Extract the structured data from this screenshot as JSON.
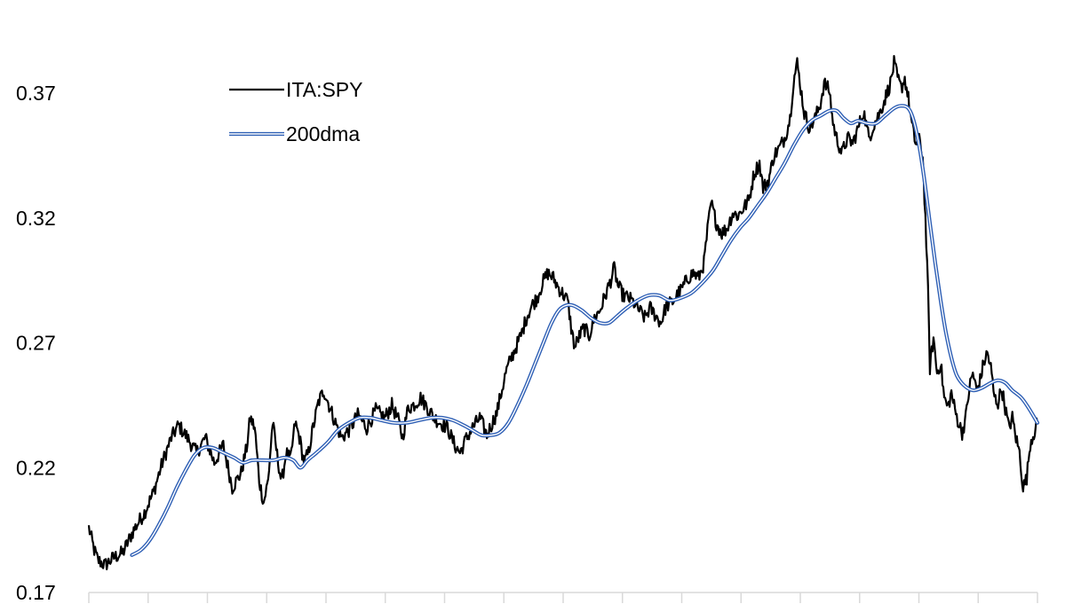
{
  "chart_data": {
    "type": "line",
    "title": "",
    "xlabel": "",
    "ylabel": "",
    "ylim": [
      0.17,
      0.385
    ],
    "y_ticks": [
      0.17,
      0.22,
      0.27,
      0.32,
      0.37
    ],
    "y_tick_labels": [
      "0.17",
      "0.22",
      "0.27",
      "0.32",
      "0.37"
    ],
    "x_axis_tick_count": 17,
    "grid": false,
    "legend_position": "top-left",
    "x_range": [
      0,
      1000
    ],
    "series": [
      {
        "name": "ITA:SPY",
        "color": "#000000",
        "style": "solid",
        "anchors": [
          [
            0,
            0.196
          ],
          [
            6,
            0.187
          ],
          [
            10,
            0.183
          ],
          [
            18,
            0.181
          ],
          [
            28,
            0.184
          ],
          [
            38,
            0.186
          ],
          [
            50,
            0.195
          ],
          [
            62,
            0.202
          ],
          [
            72,
            0.21
          ],
          [
            82,
            0.222
          ],
          [
            92,
            0.232
          ],
          [
            100,
            0.237
          ],
          [
            110,
            0.232
          ],
          [
            120,
            0.226
          ],
          [
            130,
            0.232
          ],
          [
            140,
            0.222
          ],
          [
            150,
            0.229
          ],
          [
            160,
            0.212
          ],
          [
            170,
            0.218
          ],
          [
            176,
            0.228
          ],
          [
            180,
            0.24
          ],
          [
            185,
            0.236
          ],
          [
            190,
            0.215
          ],
          [
            195,
            0.206
          ],
          [
            200,
            0.215
          ],
          [
            205,
            0.238
          ],
          [
            210,
            0.225
          ],
          [
            215,
            0.214
          ],
          [
            220,
            0.226
          ],
          [
            225,
            0.223
          ],
          [
            230,
            0.238
          ],
          [
            235,
            0.232
          ],
          [
            240,
            0.222
          ],
          [
            245,
            0.226
          ],
          [
            250,
            0.236
          ],
          [
            256,
            0.246
          ],
          [
            262,
            0.251
          ],
          [
            268,
            0.245
          ],
          [
            275,
            0.238
          ],
          [
            282,
            0.232
          ],
          [
            290,
            0.235
          ],
          [
            300,
            0.241
          ],
          [
            310,
            0.236
          ],
          [
            320,
            0.243
          ],
          [
            330,
            0.24
          ],
          [
            338,
            0.245
          ],
          [
            345,
            0.239
          ],
          [
            350,
            0.232
          ],
          [
            356,
            0.244
          ],
          [
            362,
            0.245
          ],
          [
            370,
            0.248
          ],
          [
            378,
            0.244
          ],
          [
            385,
            0.24
          ],
          [
            392,
            0.238
          ],
          [
            400,
            0.236
          ],
          [
            408,
            0.229
          ],
          [
            414,
            0.226
          ],
          [
            420,
            0.231
          ],
          [
            428,
            0.236
          ],
          [
            436,
            0.24
          ],
          [
            444,
            0.233
          ],
          [
            450,
            0.238
          ],
          [
            455,
            0.242
          ],
          [
            460,
            0.25
          ],
          [
            465,
            0.258
          ],
          [
            470,
            0.263
          ],
          [
            476,
            0.268
          ],
          [
            482,
            0.273
          ],
          [
            488,
            0.28
          ],
          [
            494,
            0.285
          ],
          [
            500,
            0.288
          ],
          [
            506,
            0.294
          ],
          [
            512,
            0.298
          ],
          [
            518,
            0.296
          ],
          [
            524,
            0.292
          ],
          [
            530,
            0.289
          ],
          [
            534,
            0.287
          ],
          [
            538,
            0.276
          ],
          [
            542,
            0.268
          ],
          [
            546,
            0.272
          ],
          [
            552,
            0.276
          ],
          [
            558,
            0.273
          ],
          [
            564,
            0.28
          ],
          [
            570,
            0.283
          ],
          [
            576,
            0.289
          ],
          [
            582,
            0.295
          ],
          [
            586,
            0.3
          ],
          [
            590,
            0.293
          ],
          [
            596,
            0.289
          ],
          [
            602,
            0.288
          ],
          [
            608,
            0.286
          ],
          [
            614,
            0.283
          ],
          [
            620,
            0.28
          ],
          [
            626,
            0.284
          ],
          [
            632,
            0.281
          ],
          [
            638,
            0.278
          ],
          [
            644,
            0.285
          ],
          [
            650,
            0.286
          ],
          [
            656,
            0.289
          ],
          [
            662,
            0.292
          ],
          [
            668,
            0.296
          ],
          [
            674,
            0.298
          ],
          [
            680,
            0.296
          ],
          [
            686,
            0.302
          ],
          [
            690,
            0.315
          ],
          [
            694,
            0.326
          ],
          [
            700,
            0.318
          ],
          [
            706,
            0.314
          ],
          [
            712,
            0.316
          ],
          [
            718,
            0.322
          ],
          [
            724,
            0.321
          ],
          [
            730,
            0.324
          ],
          [
            736,
            0.327
          ],
          [
            742,
            0.338
          ],
          [
            748,
            0.342
          ],
          [
            752,
            0.332
          ],
          [
            758,
            0.335
          ],
          [
            764,
            0.345
          ],
          [
            770,
            0.348
          ],
          [
            776,
            0.352
          ],
          [
            782,
            0.36
          ],
          [
            786,
            0.375
          ],
          [
            790,
            0.382
          ],
          [
            794,
            0.372
          ],
          [
            798,
            0.362
          ],
          [
            804,
            0.356
          ],
          [
            810,
            0.36
          ],
          [
            816,
            0.366
          ],
          [
            820,
            0.374
          ],
          [
            826,
            0.371
          ],
          [
            830,
            0.358
          ],
          [
            834,
            0.352
          ],
          [
            840,
            0.346
          ],
          [
            846,
            0.352
          ],
          [
            852,
            0.35
          ],
          [
            858,
            0.356
          ],
          [
            864,
            0.363
          ],
          [
            870,
            0.352
          ],
          [
            876,
            0.358
          ],
          [
            882,
            0.362
          ],
          [
            888,
            0.368
          ],
          [
            894,
            0.374
          ],
          [
            898,
            0.382
          ],
          [
            902,
            0.376
          ],
          [
            906,
            0.372
          ],
          [
            910,
            0.376
          ],
          [
            914,
            0.368
          ],
          [
            918,
            0.357
          ],
          [
            922,
            0.35
          ],
          [
            926,
            0.351
          ],
          [
            930,
            0.345
          ],
          [
            933,
            0.32
          ],
          [
            936,
            0.29
          ],
          [
            938,
            0.26
          ],
          [
            942,
            0.272
          ],
          [
            946,
            0.258
          ],
          [
            950,
            0.262
          ],
          [
            954,
            0.248
          ],
          [
            958,
            0.244
          ],
          [
            962,
            0.25
          ],
          [
            966,
            0.243
          ],
          [
            970,
            0.238
          ],
          [
            974,
            0.234
          ],
          [
            978,
            0.24
          ],
          [
            982,
            0.252
          ],
          [
            986,
            0.258
          ],
          [
            990,
            0.251
          ],
          [
            994,
            0.255
          ],
          [
            998,
            0.262
          ],
          [
            1002,
            0.266
          ],
          [
            1006,
            0.26
          ],
          [
            1010,
            0.248
          ],
          [
            1014,
            0.246
          ],
          [
            1018,
            0.252
          ],
          [
            1022,
            0.244
          ],
          [
            1026,
            0.236
          ],
          [
            1030,
            0.24
          ],
          [
            1034,
            0.232
          ],
          [
            1038,
            0.226
          ],
          [
            1042,
            0.212
          ],
          [
            1046,
            0.216
          ],
          [
            1050,
            0.23
          ],
          [
            1054,
            0.234
          ],
          [
            1058,
            0.238
          ]
        ]
      },
      {
        "name": "200dma",
        "color": "#2e5fb5",
        "style": "double",
        "anchors": [
          [
            48,
            0.185
          ],
          [
            58,
            0.187
          ],
          [
            68,
            0.191
          ],
          [
            78,
            0.197
          ],
          [
            88,
            0.204
          ],
          [
            98,
            0.212
          ],
          [
            108,
            0.219
          ],
          [
            118,
            0.225
          ],
          [
            128,
            0.228
          ],
          [
            138,
            0.228
          ],
          [
            150,
            0.226
          ],
          [
            162,
            0.224
          ],
          [
            172,
            0.222
          ],
          [
            182,
            0.223
          ],
          [
            194,
            0.223
          ],
          [
            206,
            0.223
          ],
          [
            218,
            0.224
          ],
          [
            228,
            0.223
          ],
          [
            236,
            0.22
          ],
          [
            244,
            0.223
          ],
          [
            254,
            0.226
          ],
          [
            266,
            0.23
          ],
          [
            278,
            0.235
          ],
          [
            290,
            0.238
          ],
          [
            302,
            0.24
          ],
          [
            314,
            0.24
          ],
          [
            326,
            0.239
          ],
          [
            340,
            0.238
          ],
          [
            354,
            0.238
          ],
          [
            368,
            0.239
          ],
          [
            382,
            0.24
          ],
          [
            394,
            0.24
          ],
          [
            406,
            0.239
          ],
          [
            418,
            0.237
          ],
          [
            428,
            0.235
          ],
          [
            438,
            0.233
          ],
          [
            448,
            0.233
          ],
          [
            458,
            0.234
          ],
          [
            468,
            0.238
          ],
          [
            478,
            0.245
          ],
          [
            488,
            0.253
          ],
          [
            498,
            0.262
          ],
          [
            508,
            0.271
          ],
          [
            516,
            0.278
          ],
          [
            524,
            0.283
          ],
          [
            532,
            0.285
          ],
          [
            540,
            0.285
          ],
          [
            550,
            0.283
          ],
          [
            560,
            0.28
          ],
          [
            570,
            0.278
          ],
          [
            580,
            0.278
          ],
          [
            590,
            0.281
          ],
          [
            600,
            0.284
          ],
          [
            612,
            0.287
          ],
          [
            624,
            0.289
          ],
          [
            636,
            0.289
          ],
          [
            648,
            0.287
          ],
          [
            660,
            0.288
          ],
          [
            672,
            0.29
          ],
          [
            684,
            0.294
          ],
          [
            696,
            0.299
          ],
          [
            706,
            0.305
          ],
          [
            716,
            0.311
          ],
          [
            726,
            0.316
          ],
          [
            736,
            0.32
          ],
          [
            746,
            0.325
          ],
          [
            756,
            0.33
          ],
          [
            766,
            0.336
          ],
          [
            776,
            0.342
          ],
          [
            786,
            0.349
          ],
          [
            796,
            0.355
          ],
          [
            806,
            0.359
          ],
          [
            816,
            0.361
          ],
          [
            826,
            0.363
          ],
          [
            834,
            0.363
          ],
          [
            842,
            0.36
          ],
          [
            850,
            0.358
          ],
          [
            858,
            0.359
          ],
          [
            868,
            0.358
          ],
          [
            878,
            0.358
          ],
          [
            888,
            0.361
          ],
          [
            898,
            0.364
          ],
          [
            906,
            0.365
          ],
          [
            914,
            0.364
          ],
          [
            920,
            0.359
          ],
          [
            926,
            0.349
          ],
          [
            932,
            0.335
          ],
          [
            938,
            0.318
          ],
          [
            944,
            0.302
          ],
          [
            950,
            0.287
          ],
          [
            956,
            0.274
          ],
          [
            962,
            0.264
          ],
          [
            968,
            0.257
          ],
          [
            976,
            0.253
          ],
          [
            986,
            0.251
          ],
          [
            996,
            0.252
          ],
          [
            1006,
            0.254
          ],
          [
            1014,
            0.255
          ],
          [
            1022,
            0.254
          ],
          [
            1030,
            0.251
          ],
          [
            1040,
            0.248
          ],
          [
            1048,
            0.244
          ],
          [
            1058,
            0.238
          ]
        ]
      }
    ]
  }
}
